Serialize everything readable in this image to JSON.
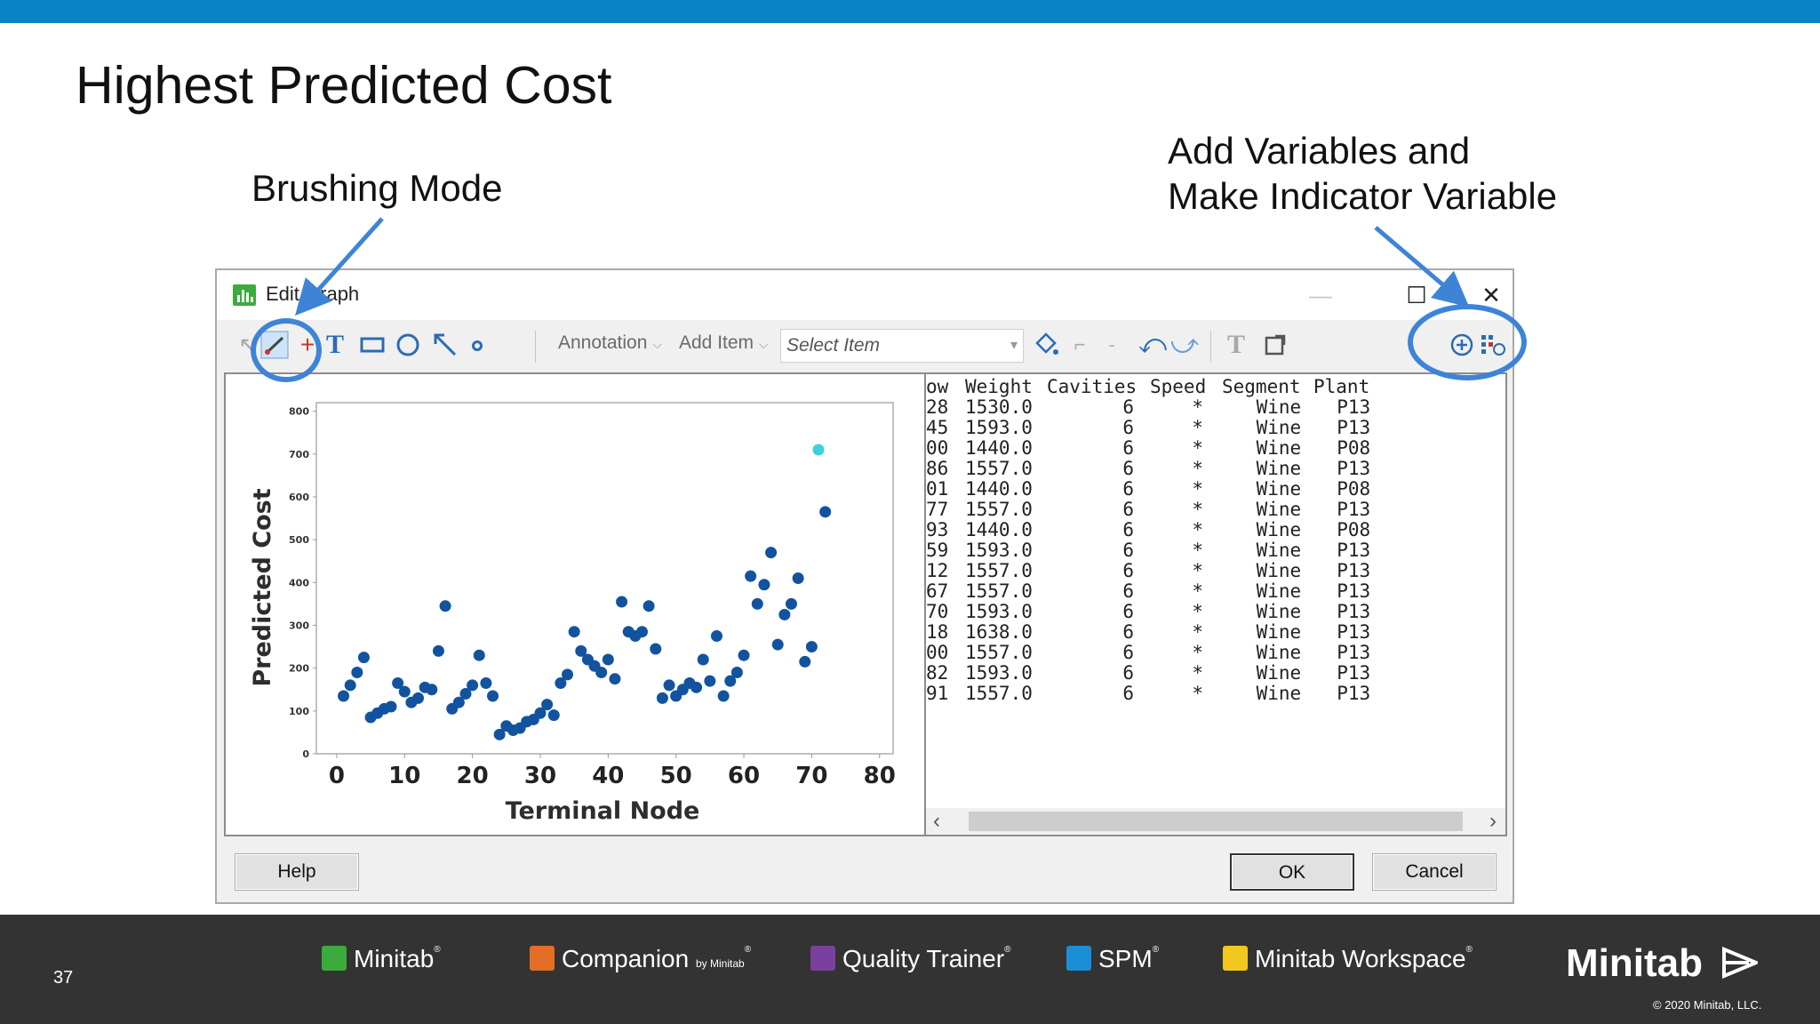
{
  "slide": {
    "title": "Highest Predicted Cost",
    "callout_brushing": "Brushing Mode",
    "callout_add_line1": "Add Variables and",
    "callout_add_line2": "Make Indicator Variable",
    "page_number": "37"
  },
  "dialog": {
    "title": "Edit Graph",
    "toolbar": {
      "annotation_label": "Annotation",
      "add_item_label": "Add Item",
      "select_item_placeholder": "Select Item",
      "icons": [
        "select-arrow-icon",
        "brush-icon",
        "crosshair-icon",
        "text-tool-icon",
        "rectangle-icon",
        "ellipse-icon",
        "line-arrow-icon",
        "marker-icon",
        "fill-icon",
        "undo-icon",
        "redo-icon",
        "text-format-icon",
        "export-icon",
        "add-variables-icon",
        "indicator-variable-icon"
      ]
    },
    "buttons": {
      "help": "Help",
      "ok": "OK",
      "cancel": "Cancel"
    },
    "worksheet": {
      "columns": [
        "ow",
        "Weight",
        "Cavities",
        "Speed",
        "Segment",
        "Plant"
      ],
      "rows": [
        [
          "28",
          "1530.0",
          "6",
          "*",
          "Wine",
          "P13"
        ],
        [
          "45",
          "1593.0",
          "6",
          "*",
          "Wine",
          "P13"
        ],
        [
          "00",
          "1440.0",
          "6",
          "*",
          "Wine",
          "P08"
        ],
        [
          "86",
          "1557.0",
          "6",
          "*",
          "Wine",
          "P13"
        ],
        [
          "01",
          "1440.0",
          "6",
          "*",
          "Wine",
          "P08"
        ],
        [
          "77",
          "1557.0",
          "6",
          "*",
          "Wine",
          "P13"
        ],
        [
          "93",
          "1440.0",
          "6",
          "*",
          "Wine",
          "P08"
        ],
        [
          "59",
          "1593.0",
          "6",
          "*",
          "Wine",
          "P13"
        ],
        [
          "12",
          "1557.0",
          "6",
          "*",
          "Wine",
          "P13"
        ],
        [
          "67",
          "1557.0",
          "6",
          "*",
          "Wine",
          "P13"
        ],
        [
          "70",
          "1593.0",
          "6",
          "*",
          "Wine",
          "P13"
        ],
        [
          "18",
          "1638.0",
          "6",
          "*",
          "Wine",
          "P13"
        ],
        [
          "00",
          "1557.0",
          "6",
          "*",
          "Wine",
          "P13"
        ],
        [
          "82",
          "1593.0",
          "6",
          "*",
          "Wine",
          "P13"
        ],
        [
          "91",
          "1557.0",
          "6",
          "*",
          "Wine",
          "P13"
        ]
      ]
    }
  },
  "chart_data": {
    "type": "scatter",
    "xlabel": "Terminal Node",
    "ylabel": "Predicted Cost",
    "xlim": [
      -3,
      82
    ],
    "ylim": [
      0,
      820
    ],
    "xticks": [
      0,
      10,
      20,
      30,
      40,
      50,
      60,
      70,
      80
    ],
    "yticks": [
      0,
      100,
      200,
      300,
      400,
      500,
      600,
      700,
      800
    ],
    "point_color": "#1253a0",
    "highlight_color": "#3ed0de",
    "points": [
      [
        1,
        135
      ],
      [
        2,
        160
      ],
      [
        3,
        190
      ],
      [
        4,
        225
      ],
      [
        5,
        85
      ],
      [
        6,
        95
      ],
      [
        7,
        105
      ],
      [
        8,
        110
      ],
      [
        9,
        165
      ],
      [
        10,
        145
      ],
      [
        11,
        120
      ],
      [
        12,
        130
      ],
      [
        13,
        155
      ],
      [
        14,
        150
      ],
      [
        15,
        240
      ],
      [
        16,
        345
      ],
      [
        17,
        105
      ],
      [
        18,
        120
      ],
      [
        19,
        140
      ],
      [
        20,
        160
      ],
      [
        21,
        230
      ],
      [
        22,
        165
      ],
      [
        23,
        135
      ],
      [
        24,
        45
      ],
      [
        25,
        65
      ],
      [
        26,
        55
      ],
      [
        27,
        60
      ],
      [
        28,
        75
      ],
      [
        29,
        80
      ],
      [
        30,
        95
      ],
      [
        31,
        115
      ],
      [
        32,
        90
      ],
      [
        33,
        165
      ],
      [
        34,
        185
      ],
      [
        35,
        285
      ],
      [
        36,
        240
      ],
      [
        37,
        220
      ],
      [
        38,
        205
      ],
      [
        39,
        190
      ],
      [
        40,
        220
      ],
      [
        41,
        175
      ],
      [
        42,
        355
      ],
      [
        43,
        285
      ],
      [
        44,
        275
      ],
      [
        45,
        285
      ],
      [
        46,
        345
      ],
      [
        47,
        245
      ],
      [
        48,
        130
      ],
      [
        49,
        160
      ],
      [
        50,
        135
      ],
      [
        51,
        150
      ],
      [
        52,
        165
      ],
      [
        53,
        155
      ],
      [
        54,
        220
      ],
      [
        55,
        170
      ],
      [
        56,
        275
      ],
      [
        57,
        135
      ],
      [
        58,
        170
      ],
      [
        59,
        190
      ],
      [
        60,
        230
      ],
      [
        61,
        415
      ],
      [
        62,
        350
      ],
      [
        63,
        395
      ],
      [
        64,
        470
      ],
      [
        65,
        255
      ],
      [
        66,
        325
      ],
      [
        67,
        350
      ],
      [
        68,
        410
      ],
      [
        69,
        215
      ],
      [
        70,
        250
      ],
      [
        72,
        565
      ]
    ],
    "highlighted_points": [
      [
        71,
        710
      ]
    ]
  },
  "footer": {
    "products": [
      "Minitab",
      "Companion",
      "Quality Trainer",
      "SPM",
      "Minitab Workspace"
    ],
    "companion_by": "by Minitab",
    "brand": "Minitab",
    "copyright": "© 2020 Minitab, LLC."
  }
}
